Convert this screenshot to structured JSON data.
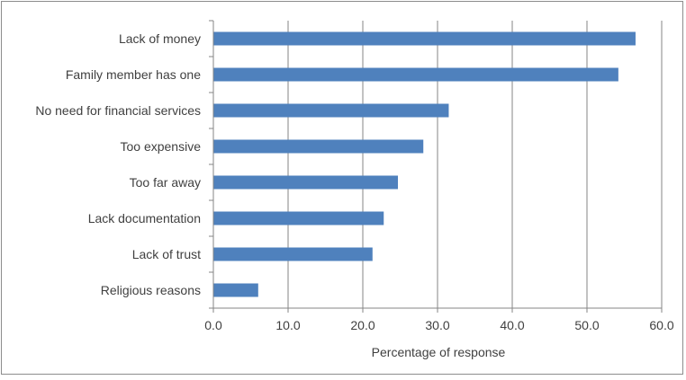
{
  "chart_data": {
    "type": "bar",
    "orientation": "horizontal",
    "categories": [
      "Lack of money",
      "Family member has one",
      "No need for financial services",
      "Too expensive",
      "Too far away",
      "Lack documentation",
      "Lack of trust",
      "Religious reasons"
    ],
    "values": [
      56.5,
      54.2,
      31.5,
      28.1,
      24.7,
      22.8,
      21.3,
      6.0
    ],
    "xlabel": "Percentage of response",
    "ylabel": "",
    "title": "",
    "xlim": [
      0,
      60
    ],
    "xticks": [
      "0.0",
      "10.0",
      "20.0",
      "30.0",
      "40.0",
      "50.0",
      "60.0"
    ],
    "grid": "vertical",
    "legend": "none",
    "bar_color": "#4f81bd",
    "grid_color": "#868686"
  }
}
